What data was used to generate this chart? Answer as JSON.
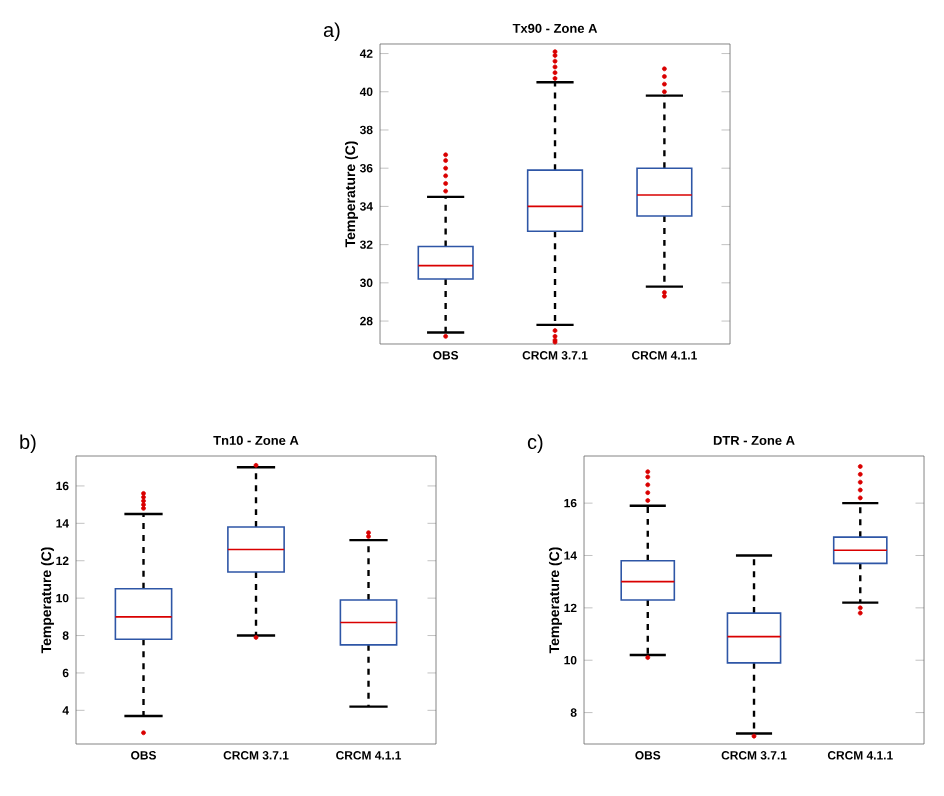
{
  "chart_data": [
    {
      "type": "box",
      "title": "Tx90 - Zone A",
      "ylabel": "Temperature (C)",
      "annotations": [
        "a)"
      ],
      "categories": [
        "OBS",
        "CRCM 3.7.1",
        "CRCM 4.1.1"
      ],
      "ylim": [
        26.8,
        42.5
      ],
      "yticks": [
        28,
        30,
        32,
        34,
        36,
        38,
        40,
        42
      ],
      "series": [
        {
          "color": "#2e56a6",
          "boxes": [
            {
              "low": 27.4,
              "q1": 30.2,
              "median": 30.9,
              "q3": 31.9,
              "high": 34.5,
              "outliers": [
                34.8,
                35.2,
                35.6,
                36.0,
                36.4,
                36.7,
                27.2
              ]
            },
            {
              "low": 27.8,
              "q1": 32.7,
              "median": 34.0,
              "q3": 35.9,
              "high": 40.5,
              "outliers": [
                40.7,
                41.0,
                41.3,
                41.6,
                41.9,
                42.1,
                27.5,
                27.2,
                27.0,
                26.9
              ]
            },
            {
              "low": 29.8,
              "q1": 33.5,
              "median": 34.6,
              "q3": 36.0,
              "high": 39.8,
              "outliers": [
                40.0,
                40.4,
                40.8,
                41.2,
                29.5,
                29.3
              ]
            }
          ]
        }
      ]
    },
    {
      "type": "box",
      "title": "Tn10 - Zone A",
      "ylabel": "Temperature (C)",
      "annotations": [
        "b)"
      ],
      "categories": [
        "OBS",
        "CRCM 3.7.1",
        "CRCM 4.1.1"
      ],
      "ylim": [
        2.2,
        17.6
      ],
      "yticks": [
        4,
        6,
        8,
        10,
        12,
        14,
        16
      ],
      "series": [
        {
          "color": "#2e56a6",
          "boxes": [
            {
              "low": 3.7,
              "q1": 7.8,
              "median": 9.0,
              "q3": 10.5,
              "high": 14.5,
              "outliers": [
                14.8,
                15.0,
                15.2,
                15.4,
                15.6,
                2.8
              ]
            },
            {
              "low": 8.0,
              "q1": 11.4,
              "median": 12.6,
              "q3": 13.8,
              "high": 17.0,
              "outliers": [
                17.1,
                7.9
              ]
            },
            {
              "low": 4.2,
              "q1": 7.5,
              "median": 8.7,
              "q3": 9.9,
              "high": 13.1,
              "outliers": [
                13.3,
                13.5
              ]
            }
          ]
        }
      ]
    },
    {
      "type": "box",
      "title": "DTR - Zone A",
      "ylabel": "Temperature (C)",
      "annotations": [
        "c)"
      ],
      "categories": [
        "OBS",
        "CRCM 3.7.1",
        "CRCM 4.1.1"
      ],
      "ylim": [
        6.8,
        17.8
      ],
      "yticks": [
        8,
        10,
        12,
        14,
        16
      ],
      "series": [
        {
          "color": "#2e56a6",
          "boxes": [
            {
              "low": 10.2,
              "q1": 12.3,
              "median": 13.0,
              "q3": 13.8,
              "high": 15.9,
              "outliers": [
                16.1,
                16.4,
                16.7,
                17.0,
                17.2,
                10.1
              ]
            },
            {
              "low": 7.2,
              "q1": 9.9,
              "median": 10.9,
              "q3": 11.8,
              "high": 14.0,
              "outliers": [
                7.1
              ]
            },
            {
              "low": 12.2,
              "q1": 13.7,
              "median": 14.2,
              "q3": 14.7,
              "high": 16.0,
              "outliers": [
                16.2,
                16.5,
                16.8,
                17.1,
                17.4,
                12.0,
                11.8
              ]
            }
          ]
        }
      ]
    }
  ]
}
